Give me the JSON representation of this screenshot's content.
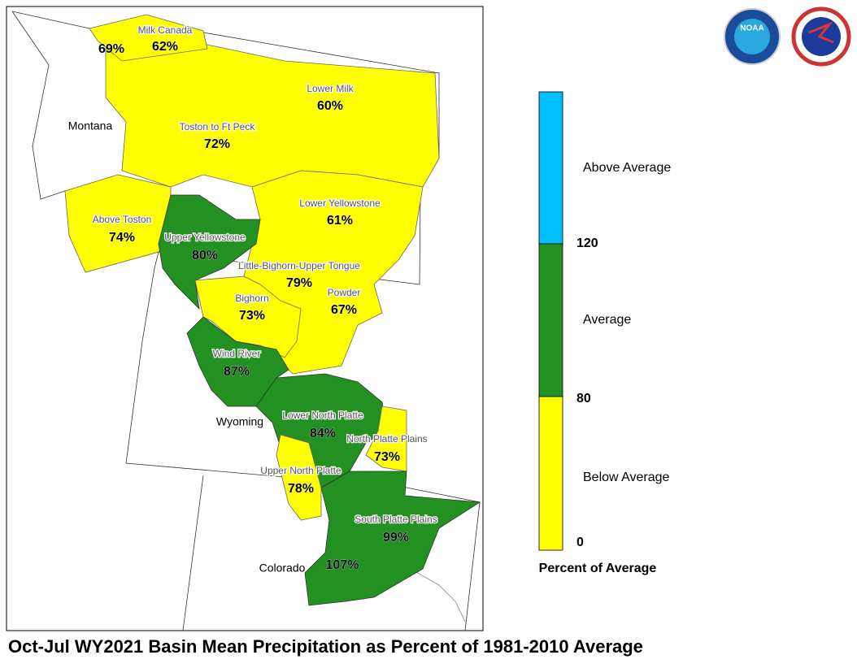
{
  "map": {
    "title": "Oct-Jul WY2021 Basin Mean Precipitation as Percent of 1981-2010 Average",
    "states": [
      "Montana",
      "Wyoming",
      "Colorado"
    ],
    "basins": [
      {
        "value": "69%"
      },
      {
        "name": "Milk Canada",
        "value": "62%"
      },
      {
        "name": "Lower Milk",
        "value": "60%"
      },
      {
        "name": "Toston to Ft Peck",
        "value": "72%"
      },
      {
        "name": "Above Toston",
        "value": "74%"
      },
      {
        "name": "Upper Yellowstone",
        "value": "80%"
      },
      {
        "name": "Lower Yellowstone",
        "value": "61%"
      },
      {
        "name": "Little-Bighorn-Upper Tongue",
        "value": "79%"
      },
      {
        "name": "Bighorn",
        "value": "73%"
      },
      {
        "name": "Powder",
        "value": "67%"
      },
      {
        "name": "Wind River",
        "value": "87%"
      },
      {
        "name": "Lower North Platte",
        "value": "84%"
      },
      {
        "name": "North Platte Plains",
        "value": "73%"
      },
      {
        "name": "Upper North Platte",
        "value": "78%"
      },
      {
        "name": "South Platte Plains",
        "value": "99%"
      },
      {
        "value": "107%"
      }
    ]
  },
  "legend": {
    "title": "Percent of Average",
    "ticks": [
      120,
      80,
      0
    ],
    "classes": [
      "Above Average",
      "Average",
      "Below Average"
    ]
  },
  "logos": {
    "noaa": "NOAA"
  }
}
